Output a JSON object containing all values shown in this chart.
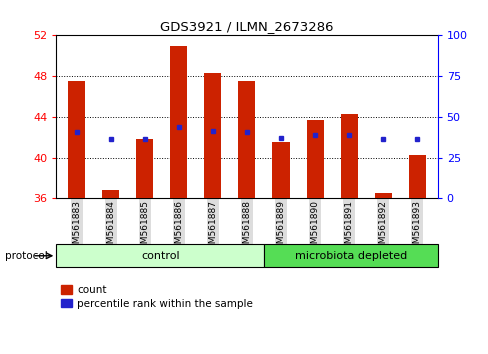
{
  "title": "GDS3921 / ILMN_2673286",
  "samples": [
    "GSM561883",
    "GSM561884",
    "GSM561885",
    "GSM561886",
    "GSM561887",
    "GSM561888",
    "GSM561889",
    "GSM561890",
    "GSM561891",
    "GSM561892",
    "GSM561893"
  ],
  "counts": [
    47.5,
    36.8,
    41.8,
    51.0,
    48.3,
    47.5,
    41.5,
    43.7,
    44.3,
    36.5,
    40.2
  ],
  "percentile_ranks": [
    40.9,
    36.2,
    36.6,
    43.6,
    41.5,
    40.6,
    37.1,
    38.6,
    39.1,
    36.1,
    36.4
  ],
  "ylim_left": [
    36,
    52
  ],
  "yticks_left": [
    36,
    40,
    44,
    48,
    52
  ],
  "ylim_right": [
    0,
    100
  ],
  "yticks_right": [
    0,
    25,
    50,
    75,
    100
  ],
  "bar_color": "#cc2200",
  "percentile_color": "#2222cc",
  "control_samples": 6,
  "microbiota_samples": 5,
  "control_label": "control",
  "microbiota_label": "microbiota depleted",
  "protocol_label": "protocol",
  "legend_count": "count",
  "legend_percentile": "percentile rank within the sample",
  "control_bg": "#ccffcc",
  "microbiota_bg": "#55dd55",
  "tick_label_bg": "#dddddd",
  "bar_width": 0.5
}
